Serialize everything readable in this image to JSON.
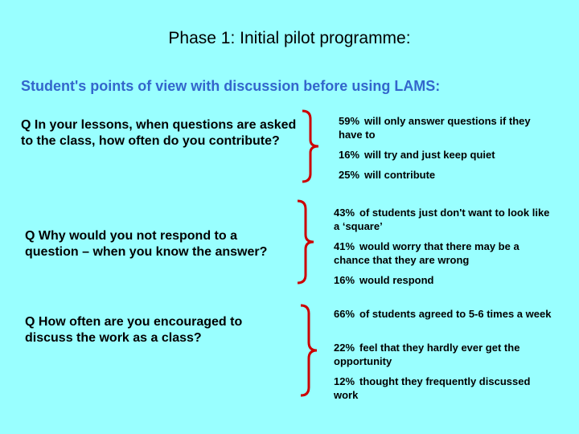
{
  "title": "Phase 1:  Initial pilot programme:",
  "subtitle": "Student's points of view with discussion before using LAMS:",
  "colors": {
    "background": "#99ffff",
    "subtitle": "#3366cc",
    "brace": "#cc0000"
  },
  "groups": [
    {
      "question": "Q  In your lessons, when questions are asked to the class, how often do you contribute?",
      "answers": [
        {
          "pct": "59%",
          "text": "will only answer questions if they have to"
        },
        {
          "pct": "16%",
          "text": "will try and just keep quiet"
        },
        {
          "pct": "25%",
          "text": "will contribute"
        }
      ]
    },
    {
      "question": "Q Why would you not respond to a question – when you know the answer?",
      "answers": [
        {
          "pct": "43%",
          "text": "of students just don't want to look like a ‘square’"
        },
        {
          "pct": "41%",
          "text": "would worry that there may be a chance that they are wrong"
        },
        {
          "pct": "16%",
          "text": "would respond"
        }
      ]
    },
    {
      "question": "Q How often are you encouraged to discuss the work as a class?",
      "answers": [
        {
          "pct": "66%",
          "text": "of students agreed to 5-6 times a week"
        },
        {
          "pct": "22%",
          "text": "feel that they hardly ever get the opportunity"
        },
        {
          "pct": "12%",
          "text": "thought they frequently discussed work"
        }
      ]
    }
  ]
}
